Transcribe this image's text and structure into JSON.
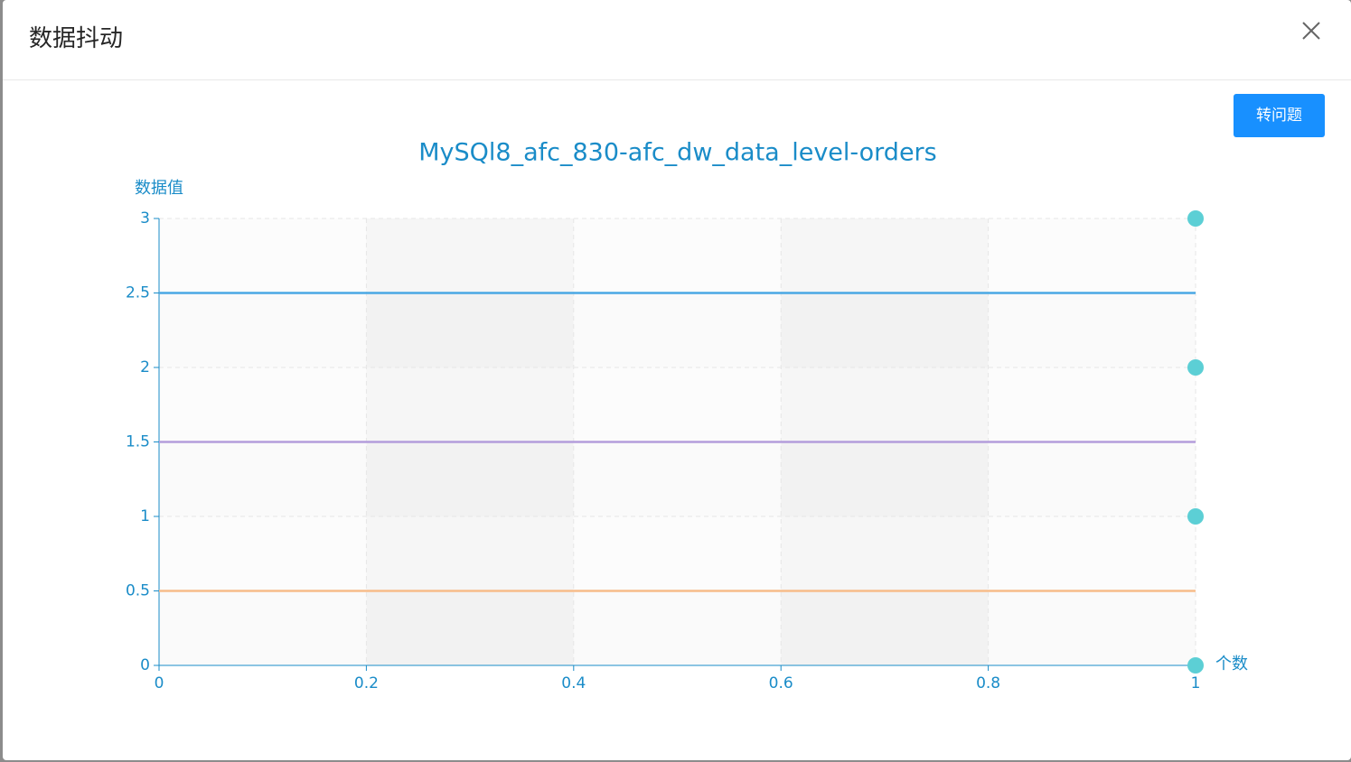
{
  "header": {
    "title": "数据抖动"
  },
  "actions": {
    "button": "转问题"
  },
  "chart_data": {
    "type": "scatter",
    "title": "MySQl8_afc_830-afc_dw_data_level-orders",
    "y_label": "数据值",
    "x_label": "个数",
    "x": [
      1,
      1,
      1,
      1
    ],
    "values": [
      3,
      2,
      1,
      0
    ],
    "color": "#5ccfd5",
    "reference_lines": [
      {
        "value": 2.5,
        "color": "#4aa8e4"
      },
      {
        "value": 1.5,
        "color": "#b39ddb"
      },
      {
        "value": 0.5,
        "color": "#f7bc8a"
      }
    ],
    "xlim": [
      0,
      1
    ],
    "xticks": [
      0,
      0.2,
      0.4,
      0.6,
      0.8,
      1
    ],
    "ylim": [
      0,
      3
    ],
    "yticks": [
      0,
      0.5,
      1,
      1.5,
      2,
      2.5,
      3
    ],
    "grid": true,
    "split_area": true
  }
}
